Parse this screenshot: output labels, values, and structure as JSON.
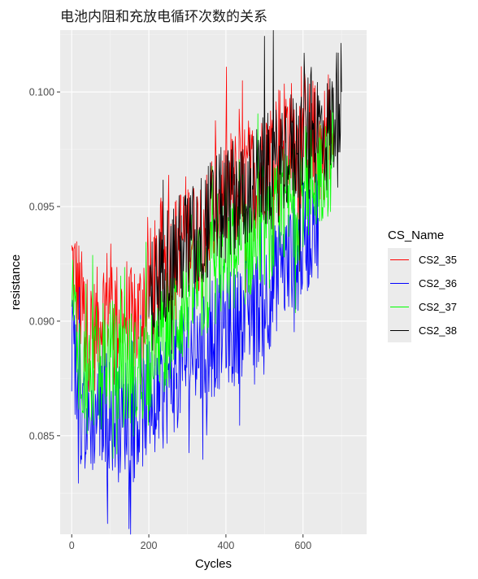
{
  "chart_data": {
    "type": "line",
    "title": "电池内阻和充放电循环次数的关系",
    "xlabel": "Cycles",
    "ylabel": "resistance",
    "xlim": [
      -30,
      765
    ],
    "ylim": [
      0.0807,
      0.1027
    ],
    "x_ticks": [
      0,
      200,
      400,
      600
    ],
    "y_ticks": [
      0.085,
      0.09,
      0.095,
      0.1
    ],
    "x_tick_labels": [
      "0",
      "200",
      "400",
      "600"
    ],
    "y_tick_labels": [
      "0.085",
      "0.090",
      "0.095",
      "0.100"
    ],
    "grid": true,
    "legend_position": "right",
    "legend_title": "CS_Name",
    "series": [
      {
        "name": "CS2_35",
        "color": "#ff0000",
        "x": [
          0,
          20,
          40,
          60,
          80,
          100,
          120,
          140,
          160,
          180,
          200,
          220,
          240,
          260,
          280,
          300,
          320,
          340,
          360,
          380,
          400,
          420,
          440,
          460,
          480,
          500,
          520,
          540,
          560,
          580,
          600,
          620,
          640,
          660,
          680
        ],
        "y": [
          0.0925,
          0.091,
          0.0895,
          0.0895,
          0.0905,
          0.091,
          0.09,
          0.0905,
          0.0895,
          0.0905,
          0.0915,
          0.092,
          0.093,
          0.0925,
          0.0935,
          0.094,
          0.0935,
          0.0945,
          0.094,
          0.095,
          0.0955,
          0.096,
          0.0955,
          0.0965,
          0.096,
          0.097,
          0.0975,
          0.098,
          0.0985,
          0.0975,
          0.0985,
          0.098,
          0.0975,
          0.098,
          0.0975
        ]
      },
      {
        "name": "CS2_36",
        "color": "#0000ff",
        "x": [
          0,
          20,
          40,
          60,
          80,
          100,
          120,
          140,
          160,
          180,
          200,
          220,
          240,
          260,
          280,
          300,
          320,
          340,
          360,
          380,
          400,
          420,
          440,
          460,
          480,
          500,
          520,
          540,
          560,
          580,
          600,
          620,
          640
        ],
        "y": [
          0.089,
          0.0865,
          0.0855,
          0.086,
          0.0865,
          0.086,
          0.0855,
          0.086,
          0.0855,
          0.086,
          0.0865,
          0.086,
          0.087,
          0.0875,
          0.088,
          0.0885,
          0.089,
          0.0885,
          0.089,
          0.0895,
          0.09,
          0.0895,
          0.09,
          0.0905,
          0.0905,
          0.091,
          0.0915,
          0.092,
          0.0925,
          0.093,
          0.0935,
          0.094,
          0.0945
        ]
      },
      {
        "name": "CS2_37",
        "color": "#00ff00",
        "x": [
          0,
          20,
          40,
          60,
          80,
          100,
          120,
          140,
          160,
          180,
          200,
          220,
          240,
          260,
          280,
          300,
          320,
          340,
          360,
          380,
          400,
          420,
          440,
          460,
          480,
          500,
          520,
          540,
          560,
          580,
          600,
          620,
          640,
          660,
          680
        ],
        "y": [
          0.091,
          0.0885,
          0.0875,
          0.088,
          0.0885,
          0.0885,
          0.088,
          0.088,
          0.0875,
          0.088,
          0.0885,
          0.088,
          0.0895,
          0.09,
          0.0905,
          0.091,
          0.0915,
          0.0915,
          0.092,
          0.0925,
          0.0925,
          0.093,
          0.093,
          0.0935,
          0.0935,
          0.094,
          0.094,
          0.0945,
          0.095,
          0.095,
          0.0955,
          0.096,
          0.0965,
          0.097,
          0.0975
        ]
      },
      {
        "name": "CS2_38",
        "color": "#000000",
        "x": [
          200,
          220,
          240,
          260,
          280,
          300,
          320,
          340,
          360,
          380,
          400,
          420,
          440,
          460,
          480,
          500,
          520,
          540,
          560,
          580,
          600,
          620,
          640,
          660,
          680,
          700
        ],
        "y": [
          0.091,
          0.0915,
          0.0925,
          0.093,
          0.093,
          0.0935,
          0.0935,
          0.094,
          0.0945,
          0.095,
          0.095,
          0.0955,
          0.0955,
          0.096,
          0.096,
          0.0965,
          0.0965,
          0.097,
          0.0975,
          0.0975,
          0.098,
          0.0985,
          0.0985,
          0.098,
          0.099,
          0.1
        ]
      }
    ]
  }
}
